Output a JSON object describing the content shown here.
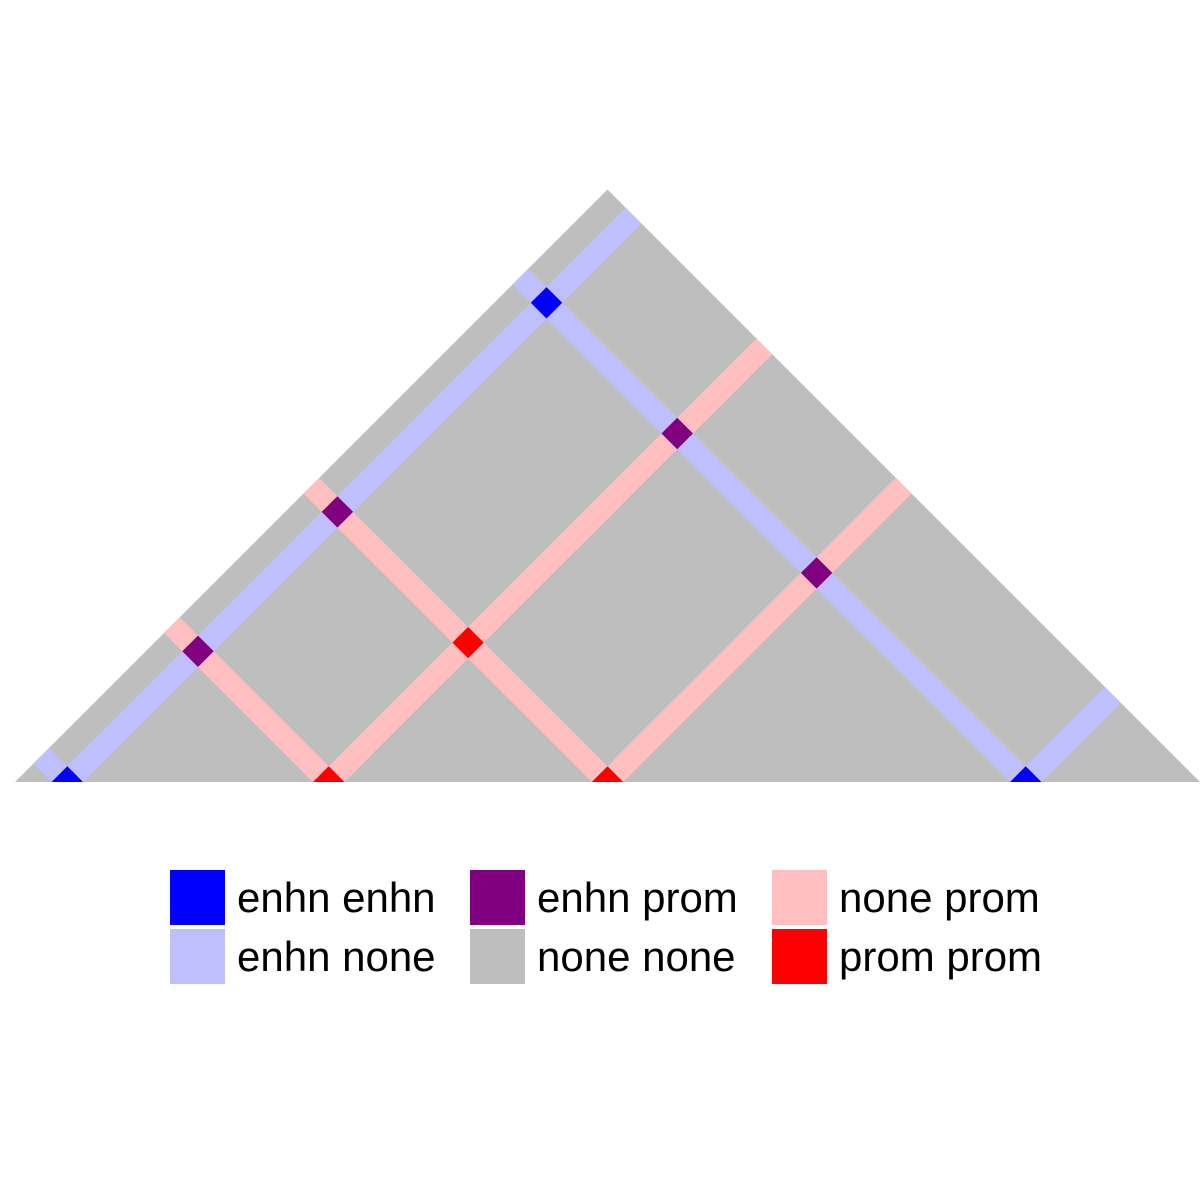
{
  "chart_data": {
    "type": "heatmap",
    "layout": "triangular pairwise matrix rotated 45 degrees",
    "anchors": [
      {
        "position": 1,
        "state": "enhn"
      },
      {
        "position": 2,
        "state": "none"
      },
      {
        "position": 3,
        "state": "prom"
      },
      {
        "position": 4,
        "state": "none"
      },
      {
        "position": 5,
        "state": "prom"
      },
      {
        "position": 6,
        "state": "none"
      },
      {
        "position": 7,
        "state": "none"
      },
      {
        "position": 8,
        "state": "enhn"
      },
      {
        "position": 9,
        "state": "none"
      }
    ],
    "categories": [
      {
        "label": "enhn enhn",
        "color": "#0000ff"
      },
      {
        "label": "enhn none",
        "color": "#bfbfff"
      },
      {
        "label": "enhn prom",
        "color": "#800080"
      },
      {
        "label": "none none",
        "color": "#bebebe"
      },
      {
        "label": "none prom",
        "color": "#ffbfbf"
      },
      {
        "label": "prom prom",
        "color": "#ff0000"
      }
    ],
    "legend": "bottom",
    "title": "",
    "xlabel": "",
    "ylabel": ""
  }
}
